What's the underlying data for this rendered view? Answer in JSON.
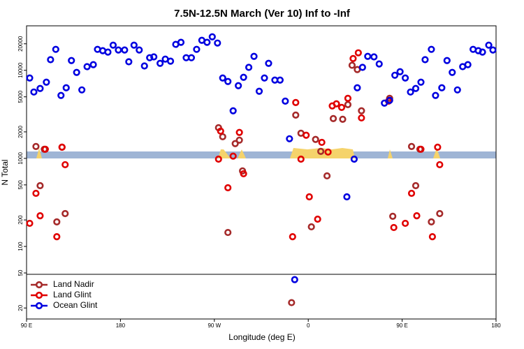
{
  "chart_data": {
    "type": "scatter",
    "title": "7.5N-12.5N March (Ver 10)   Inf to -Inf",
    "x_label": "Longitude (deg E)",
    "y_label": "N Total",
    "log_y": true,
    "xlim": [
      -270,
      180
    ],
    "ylim": [
      15,
      32000
    ],
    "xticks": [
      {
        "value": -270,
        "label": "90 E"
      },
      {
        "value": -180,
        "label": "180"
      },
      {
        "value": -90,
        "label": "90 W"
      },
      0,
      {
        "value": 90,
        "label": "90 E"
      },
      180
    ],
    "yticks": [
      20,
      50,
      100,
      200,
      500,
      1000,
      2000,
      5000,
      10000,
      20000
    ],
    "legend": "lower left",
    "series": [
      {
        "name": "Land Nadir",
        "color": "#a52a2a",
        "x": [
          -261,
          -253,
          -241,
          -236,
          -233,
          -257,
          -86,
          -82,
          -77,
          -70,
          -66,
          -63,
          -16,
          -12,
          -7,
          3,
          7,
          12,
          18,
          24,
          33,
          38,
          42,
          47,
          51,
          78,
          81,
          99,
          107,
          118,
          126,
          103
        ],
        "values": [
          1365,
          1270,
          190,
          1340,
          236,
          490,
          2230,
          1760,
          144,
          1470,
          1610,
          720,
          23,
          3100,
          1930,
          167,
          1640,
          1200,
          633,
          2830,
          2780,
          4080,
          11400,
          10200,
          3470,
          4810,
          220,
          1365,
          1270,
          190,
          236,
          490
        ]
      },
      {
        "name": "Land Glint",
        "color": "#e00000",
        "x": [
          -267,
          -261,
          -257,
          -252,
          -241,
          -236,
          -233,
          -86,
          -84,
          -77,
          -72,
          -66,
          -62,
          -15,
          -12,
          -7,
          -2,
          1,
          9,
          13,
          19,
          23,
          27,
          32,
          38,
          43,
          48,
          51,
          77,
          82,
          93,
          99,
          104,
          108,
          119,
          124,
          126
        ],
        "values": [
          183,
          401,
          223,
          1270,
          129,
          1340,
          848,
          980,
          2040,
          464,
          1060,
          1970,
          669,
          129,
          4310,
          980,
          1830,
          366,
          204,
          1520,
          1180,
          3940,
          4160,
          3790,
          4810,
          13600,
          15800,
          2880,
          4470,
          164,
          183,
          401,
          223,
          1270,
          129,
          1340,
          848
        ]
      },
      {
        "name": "Ocean Glint",
        "color": "#0000e0",
        "x": [
          -267,
          -263,
          -257,
          -251,
          -247,
          -242,
          -237,
          -232,
          -227,
          -222,
          -217,
          -212,
          -206,
          -202,
          -197,
          -192,
          -187,
          -182,
          -176,
          -172,
          -167,
          -162,
          -157,
          -152,
          -148,
          -142,
          -137,
          -132,
          -127,
          -122,
          -117,
          -112,
          -107,
          -102,
          -97,
          -92,
          -87,
          -82,
          -77,
          -72,
          -67,
          -62,
          -57,
          -52,
          -47,
          -42,
          -38,
          -32,
          -27,
          -22,
          -18,
          -13,
          37,
          44,
          47,
          52,
          57,
          63,
          68,
          73,
          78,
          83,
          88,
          93,
          98,
          103,
          108,
          112,
          118,
          122,
          128,
          133,
          138,
          143,
          148,
          153,
          158,
          163,
          167,
          173,
          177
        ],
        "values": [
          8180,
          5670,
          6220,
          7330,
          13200,
          17300,
          5180,
          6330,
          12900,
          9470,
          5990,
          11000,
          11600,
          17300,
          16700,
          16100,
          19300,
          17000,
          17000,
          12500,
          19300,
          17000,
          11200,
          13900,
          14200,
          12000,
          13400,
          12700,
          19700,
          20800,
          13900,
          13900,
          17300,
          21900,
          20800,
          24000,
          20400,
          8180,
          7460,
          3470,
          6690,
          8330,
          10800,
          14400,
          5780,
          8180,
          12000,
          7740,
          7740,
          4470,
          1670,
          42,
          366,
          980,
          6330,
          10800,
          14400,
          14200,
          11800,
          4240,
          4560,
          8790,
          9640,
          8180,
          5670,
          6220,
          7330,
          13200,
          17300,
          5180,
          6330,
          12900,
          9470,
          5990,
          11000,
          11600,
          17300,
          16700,
          16100,
          19300,
          17000
        ]
      }
    ]
  }
}
